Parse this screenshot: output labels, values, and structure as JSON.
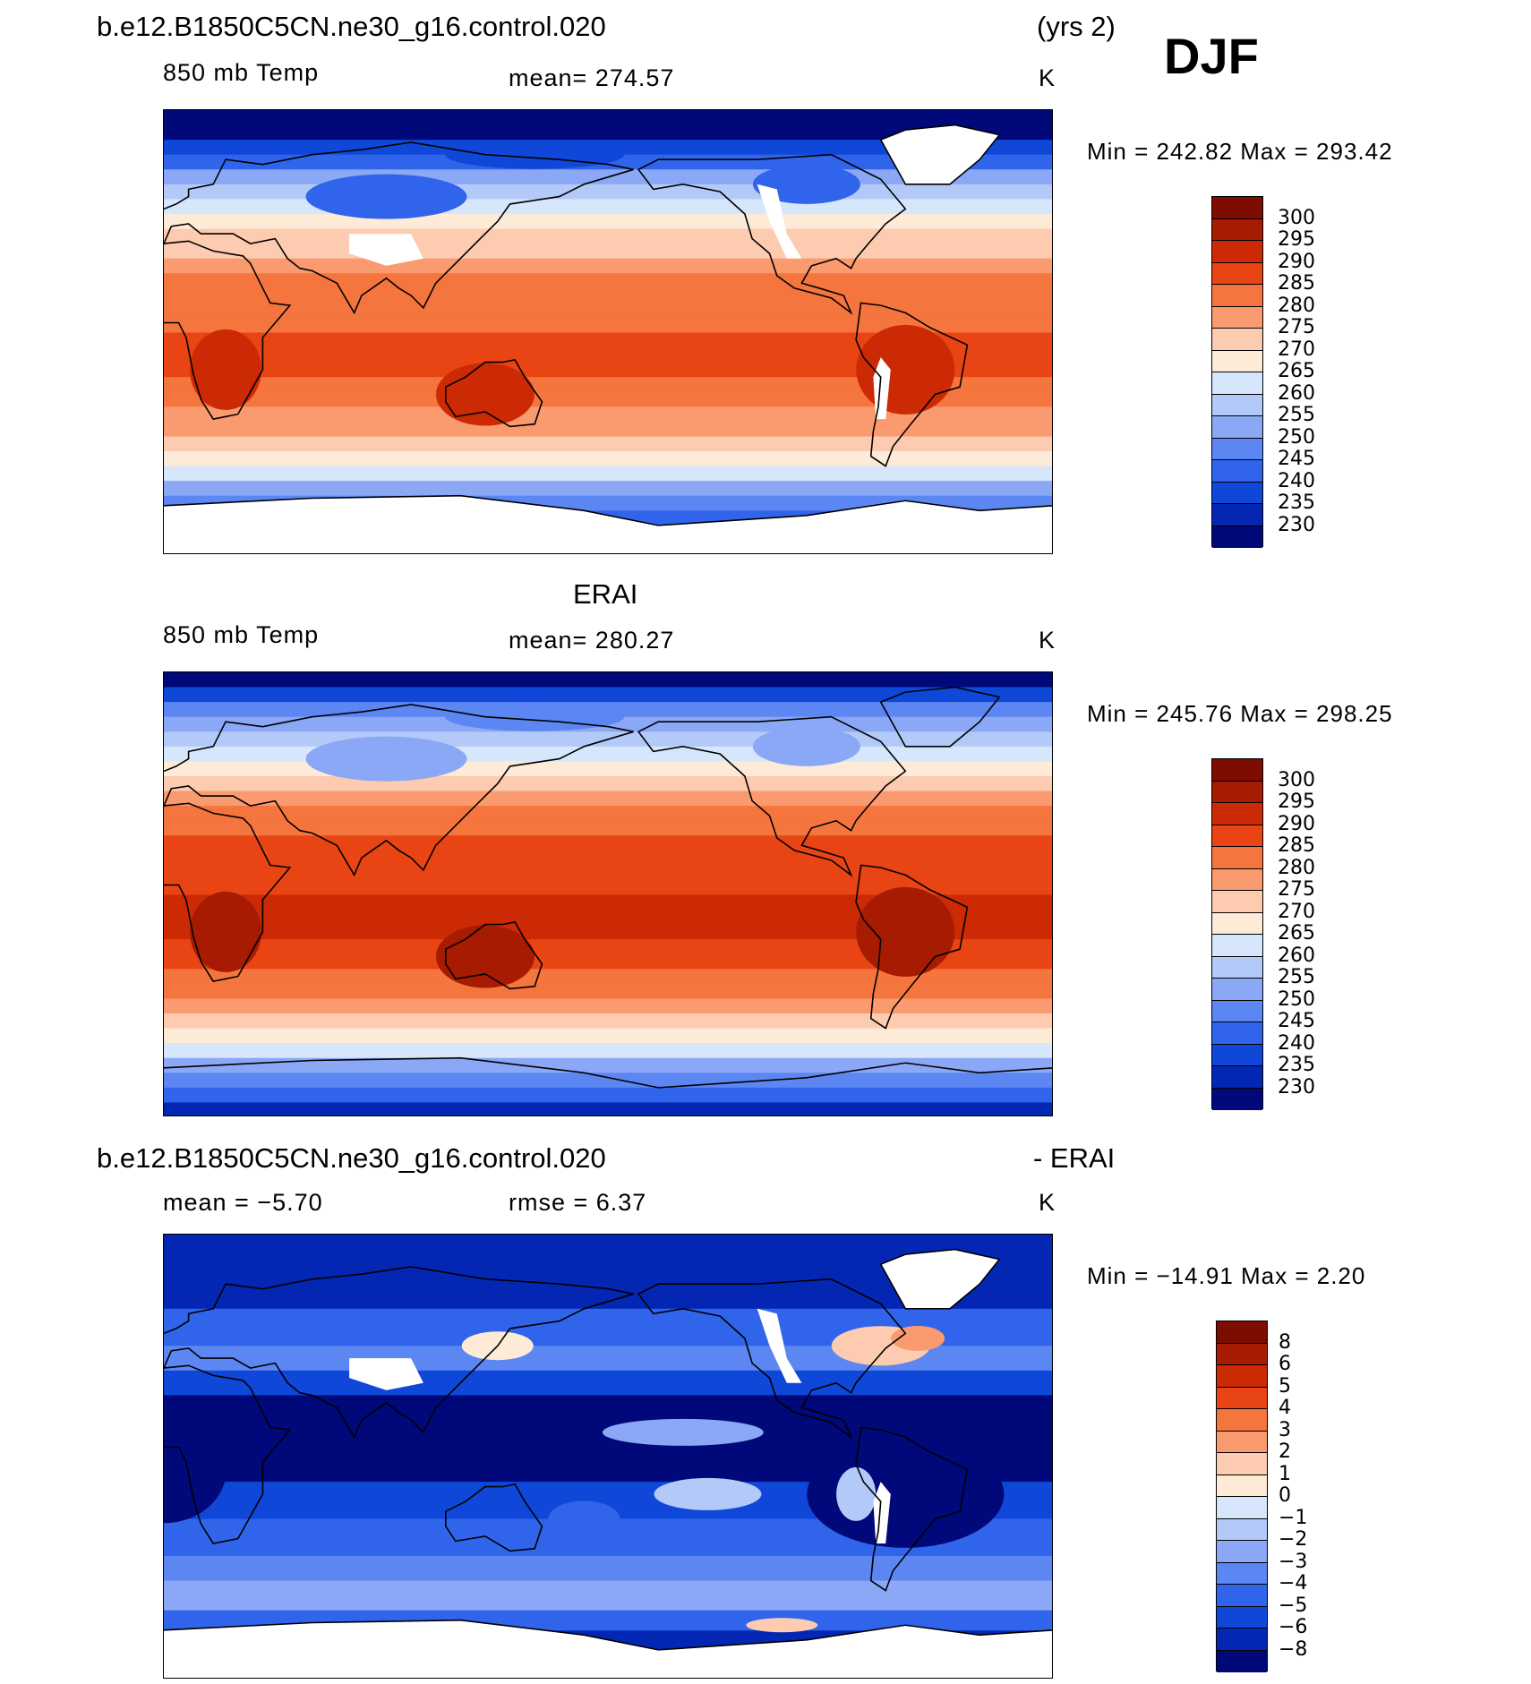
{
  "season": "DJF",
  "palettes": {
    "temp": [
      "#00087a",
      "#0427b3",
      "#0f47d9",
      "#3064eb",
      "#5c86f2",
      "#8aa8f5",
      "#b3c9f7",
      "#d6e6fb",
      "#fdebd8",
      "#fccbb0",
      "#f99a6f",
      "#f5753f",
      "#e94414",
      "#cc2905",
      "#a61b02",
      "#7d0c01"
    ],
    "diff": [
      "#00087a",
      "#0427b3",
      "#0f47d9",
      "#3064eb",
      "#5c86f2",
      "#8aa8f5",
      "#b3c9f7",
      "#d6e6fb",
      "#fdebd8",
      "#fccbb0",
      "#f99a6f",
      "#f5753f",
      "#e94414",
      "#cc2905",
      "#a61b02",
      "#7d0c01"
    ]
  },
  "panels": [
    {
      "id": "model",
      "case_title": "b.e12.B1850C5CN.ne30_g16.control.020",
      "years": "(yrs 2)",
      "variable": "850 mb Temp",
      "stat": "mean=  274.57",
      "stat2": "",
      "units": "K",
      "minmax": "Min  =  242.82  Max  =  293.42",
      "map_kind": "model",
      "colorbar_labels": [
        "300",
        "295",
        "290",
        "285",
        "280",
        "275",
        "270",
        "265",
        "260",
        "255",
        "250",
        "245",
        "240",
        "235",
        "230"
      ]
    },
    {
      "id": "obs",
      "case_title": "ERAI",
      "variable": "850 mb Temp",
      "stat": "mean=  280.27",
      "stat2": "",
      "units": "K",
      "minmax": "Min  =  245.76  Max  =  298.25",
      "map_kind": "obs",
      "colorbar_labels": [
        "300",
        "295",
        "290",
        "285",
        "280",
        "275",
        "270",
        "265",
        "260",
        "255",
        "250",
        "245",
        "240",
        "235",
        "230"
      ]
    },
    {
      "id": "diff",
      "case_title": "b.e12.B1850C5CN.ne30_g16.control.020",
      "case_suffix": "- ERAI",
      "variable": "",
      "stat": "mean  =    −5.70",
      "stat2": "rmse  =     6.37",
      "units": "K",
      "minmax": "Min  =  −14.91  Max  =       2.20",
      "map_kind": "diff",
      "colorbar_labels": [
        "8",
        "6",
        "5",
        "4",
        "3",
        "2",
        "1",
        "0",
        "−1",
        "−2",
        "−3",
        "−4",
        "−5",
        "−6",
        "−8"
      ]
    }
  ]
}
